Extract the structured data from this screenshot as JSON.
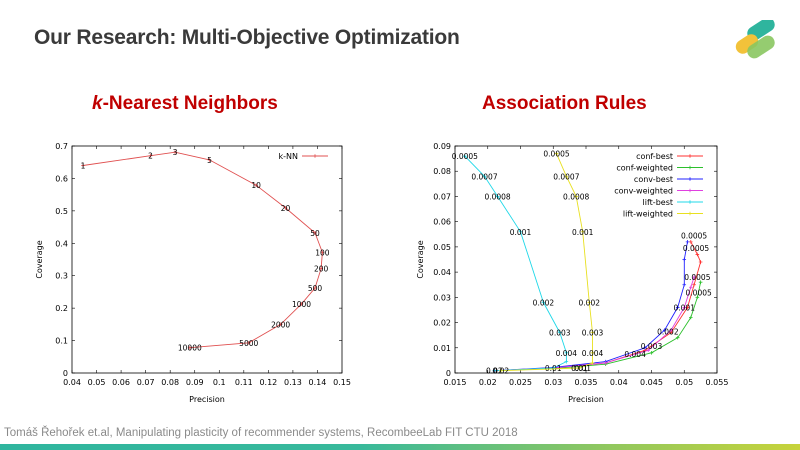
{
  "slide": {
    "title": "Our Research: Multi-Objective Optimization",
    "footer": "Tomáš Řehořek et.al, Manipulating plasticity of recommender systems, RecombeeLab FIT CTU 2018",
    "accent_color": "#c00000"
  },
  "sections": {
    "knn_title_italic": "k",
    "knn_title_rest": "-Nearest Neighbors",
    "ar_title": "Association Rules"
  },
  "chart_data": [
    {
      "type": "line",
      "xlabel": "Precision",
      "ylabel": "Coverage",
      "xlim": [
        0.04,
        0.15
      ],
      "ylim": [
        0,
        0.7
      ],
      "xticks": [
        "0.04",
        "0.05",
        "0.06",
        "0.07",
        "0.08",
        "0.09",
        "0.1",
        "0.11",
        "0.12",
        "0.13",
        "0.14",
        "0.15"
      ],
      "yticks": [
        "0",
        "0.1",
        "0.2",
        "0.3",
        "0.4",
        "0.5",
        "0.6",
        "0.7"
      ],
      "grid": false,
      "legend": "top-right",
      "series": [
        {
          "name": "k-NN",
          "color": "#e05050",
          "points": [
            {
              "x": 0.0445,
              "y": 0.64,
              "label": "1"
            },
            {
              "x": 0.072,
              "y": 0.67,
              "label": "2"
            },
            {
              "x": 0.082,
              "y": 0.681,
              "label": "3"
            },
            {
              "x": 0.096,
              "y": 0.657,
              "label": "5"
            },
            {
              "x": 0.115,
              "y": 0.579,
              "label": "10"
            },
            {
              "x": 0.127,
              "y": 0.509,
              "label": "20"
            },
            {
              "x": 0.139,
              "y": 0.432,
              "label": "50"
            },
            {
              "x": 0.142,
              "y": 0.372,
              "label": "100"
            },
            {
              "x": 0.1415,
              "y": 0.322,
              "label": "200"
            },
            {
              "x": 0.139,
              "y": 0.262,
              "label": "500"
            },
            {
              "x": 0.1335,
              "y": 0.213,
              "label": "1000"
            },
            {
              "x": 0.125,
              "y": 0.15,
              "label": "2000"
            },
            {
              "x": 0.112,
              "y": 0.093,
              "label": "5000"
            },
            {
              "x": 0.088,
              "y": 0.078,
              "label": "10000"
            }
          ]
        }
      ]
    },
    {
      "type": "line",
      "xlabel": "Precision",
      "ylabel": "Coverage",
      "xlim": [
        0.015,
        0.055
      ],
      "ylim": [
        0,
        0.09
      ],
      "xticks": [
        "0.015",
        "0.02",
        "0.025",
        "0.03",
        "0.035",
        "0.04",
        "0.045",
        "0.05",
        "0.055"
      ],
      "yticks": [
        "0",
        "0.01",
        "0.02",
        "0.03",
        "0.04",
        "0.05",
        "0.06",
        "0.07",
        "0.08",
        "0.09"
      ],
      "grid": false,
      "legend": "top-right",
      "series": [
        {
          "name": "conf-best",
          "color": "#ff3030",
          "points": [
            {
              "x": 0.021,
              "y": 0.0009
            },
            {
              "x": 0.03,
              "y": 0.002
            },
            {
              "x": 0.038,
              "y": 0.004
            },
            {
              "x": 0.044,
              "y": 0.009
            },
            {
              "x": 0.048,
              "y": 0.016
            },
            {
              "x": 0.0505,
              "y": 0.026
            },
            {
              "x": 0.0515,
              "y": 0.035
            },
            {
              "x": 0.0525,
              "y": 0.044
            },
            {
              "x": 0.052,
              "y": 0.047
            },
            {
              "x": 0.051,
              "y": 0.052
            }
          ]
        },
        {
          "name": "conf-weighted",
          "color": "#2cc02c",
          "points": [
            {
              "x": 0.021,
              "y": 0.0009
            },
            {
              "x": 0.03,
              "y": 0.0018
            },
            {
              "x": 0.038,
              "y": 0.0035
            },
            {
              "x": 0.045,
              "y": 0.008
            },
            {
              "x": 0.049,
              "y": 0.014
            },
            {
              "x": 0.051,
              "y": 0.022
            },
            {
              "x": 0.052,
              "y": 0.03
            },
            {
              "x": 0.0525,
              "y": 0.036
            }
          ]
        },
        {
          "name": "conv-best",
          "color": "#2020ff",
          "points": [
            {
              "x": 0.021,
              "y": 0.0009
            },
            {
              "x": 0.03,
              "y": 0.0022
            },
            {
              "x": 0.038,
              "y": 0.0045
            },
            {
              "x": 0.044,
              "y": 0.01
            },
            {
              "x": 0.047,
              "y": 0.017
            },
            {
              "x": 0.049,
              "y": 0.026
            },
            {
              "x": 0.05,
              "y": 0.035
            },
            {
              "x": 0.05,
              "y": 0.045
            },
            {
              "x": 0.0505,
              "y": 0.052
            }
          ]
        },
        {
          "name": "conv-weighted",
          "color": "#e040e0",
          "points": [
            {
              "x": 0.021,
              "y": 0.0009
            },
            {
              "x": 0.03,
              "y": 0.002
            },
            {
              "x": 0.038,
              "y": 0.004
            },
            {
              "x": 0.0445,
              "y": 0.009
            },
            {
              "x": 0.048,
              "y": 0.017
            },
            {
              "x": 0.05,
              "y": 0.026
            },
            {
              "x": 0.051,
              "y": 0.034
            },
            {
              "x": 0.0515,
              "y": 0.038
            }
          ]
        },
        {
          "name": "lift-best",
          "color": "#20d8e8",
          "points": [
            {
              "x": 0.0165,
              "y": 0.086,
              "label": "0.0005"
            },
            {
              "x": 0.0195,
              "y": 0.078,
              "label": "0.0007"
            },
            {
              "x": 0.0215,
              "y": 0.07,
              "label": "0.0008"
            },
            {
              "x": 0.025,
              "y": 0.056,
              "label": "0.001"
            },
            {
              "x": 0.0285,
              "y": 0.028,
              "label": "0.002"
            },
            {
              "x": 0.031,
              "y": 0.016,
              "label": "0.003"
            },
            {
              "x": 0.032,
              "y": 0.008,
              "label": "0.004"
            },
            {
              "x": 0.032,
              "y": 0.0045
            },
            {
              "x": 0.03,
              "y": 0.002,
              "label": "0.01"
            },
            {
              "x": 0.021,
              "y": 0.0009,
              "label": "0.02"
            }
          ]
        },
        {
          "name": "lift-weighted",
          "color": "#e8e020",
          "points": [
            {
              "x": 0.0305,
              "y": 0.087,
              "label": "0.0005"
            },
            {
              "x": 0.032,
              "y": 0.078,
              "label": "0.0007"
            },
            {
              "x": 0.0335,
              "y": 0.07,
              "label": "0.0008"
            },
            {
              "x": 0.0345,
              "y": 0.056,
              "label": "0.001"
            },
            {
              "x": 0.0355,
              "y": 0.028,
              "label": "0.002"
            },
            {
              "x": 0.036,
              "y": 0.016,
              "label": "0.003"
            },
            {
              "x": 0.036,
              "y": 0.008,
              "label": "0.004"
            },
            {
              "x": 0.036,
              "y": 0.004
            },
            {
              "x": 0.034,
              "y": 0.002,
              "label": "0.01"
            },
            {
              "x": 0.022,
              "y": 0.0009,
              "label": "0.02"
            }
          ]
        }
      ],
      "annotations": [
        {
          "text": "0.0005",
          "x": 0.0515,
          "y": 0.0545
        },
        {
          "text": "0.0005",
          "x": 0.0518,
          "y": 0.0495
        },
        {
          "text": "0.0005",
          "x": 0.052,
          "y": 0.038
        },
        {
          "text": "0.0005",
          "x": 0.0522,
          "y": 0.032
        },
        {
          "text": "0.001",
          "x": 0.05,
          "y": 0.026
        },
        {
          "text": "0.002",
          "x": 0.0475,
          "y": 0.0165
        },
        {
          "text": "0.003",
          "x": 0.045,
          "y": 0.0107
        },
        {
          "text": "0.004",
          "x": 0.0425,
          "y": 0.0075
        },
        {
          "text": "0.01",
          "x": 0.0345,
          "y": 0.002
        }
      ]
    }
  ]
}
